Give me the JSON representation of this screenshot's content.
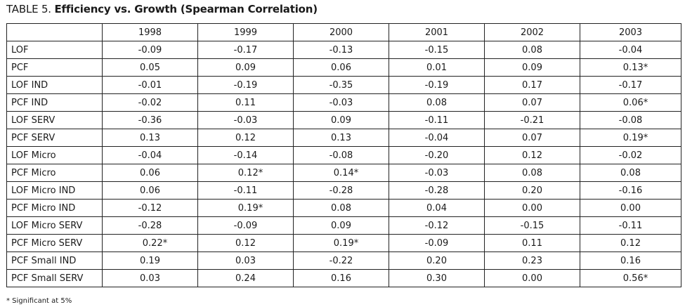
{
  "title": {
    "prefix": "TABLE 5.",
    "text": "Efficiency vs. Growth (Spearman Correlation)"
  },
  "table": {
    "columns": [
      "",
      "1998",
      "1999",
      "2000",
      "2001",
      "2002",
      "2003"
    ],
    "rows": [
      {
        "label": "LOF",
        "values": [
          "-0.09",
          "-0.17",
          "-0.13",
          "-0.15",
          "0.08",
          "-0.04"
        ]
      },
      {
        "label": "PCF",
        "values": [
          "0.05",
          "0.09",
          "0.06",
          "0.01",
          "0.09",
          "0.13*"
        ]
      },
      {
        "label": "LOF IND",
        "values": [
          "-0.01",
          "-0.19",
          "-0.35",
          "-0.19",
          "0.17",
          "-0.17"
        ]
      },
      {
        "label": "PCF IND",
        "values": [
          "-0.02",
          "0.11",
          "-0.03",
          "0.08",
          "0.07",
          "0.06*"
        ]
      },
      {
        "label": "LOF SERV",
        "values": [
          "-0.36",
          "-0.03",
          "0.09",
          "-0.11",
          "-0.21",
          "-0.08"
        ]
      },
      {
        "label": "PCF SERV",
        "values": [
          "0.13",
          "0.12",
          "0.13",
          "-0.04",
          "0.07",
          "0.19*"
        ]
      },
      {
        "label": "LOF Micro",
        "values": [
          "-0.04",
          "-0.14",
          "-0.08",
          "-0.20",
          "0.12",
          "-0.02"
        ]
      },
      {
        "label": "PCF Micro",
        "values": [
          "0.06",
          "0.12*",
          "0.14*",
          "-0.03",
          "0.08",
          "0.08"
        ]
      },
      {
        "label": "LOF Micro IND",
        "values": [
          "0.06",
          "-0.11",
          "-0.28",
          "-0.28",
          "0.20",
          "-0.16"
        ]
      },
      {
        "label": "PCF Micro IND",
        "values": [
          "-0.12",
          "0.19*",
          "0.08",
          "0.04",
          "0.00",
          "0.00"
        ]
      },
      {
        "label": "LOF Micro SERV",
        "values": [
          "-0.28",
          "-0.09",
          "0.09",
          "-0.12",
          "-0.15",
          "-0.11"
        ]
      },
      {
        "label": "PCF Micro SERV",
        "values": [
          "0.22*",
          "0.12",
          "0.19*",
          "-0.09",
          "0.11",
          "0.12"
        ]
      },
      {
        "label": "PCF Small IND",
        "values": [
          "0.19",
          "0.03",
          "-0.22",
          "0.20",
          "0.23",
          "0.16"
        ]
      },
      {
        "label": "PCF Small SERV",
        "values": [
          "0.03",
          "0.24",
          "0.16",
          "0.30",
          "0.00",
          "0.56*"
        ]
      }
    ]
  },
  "footnote": "* Significant at 5%"
}
